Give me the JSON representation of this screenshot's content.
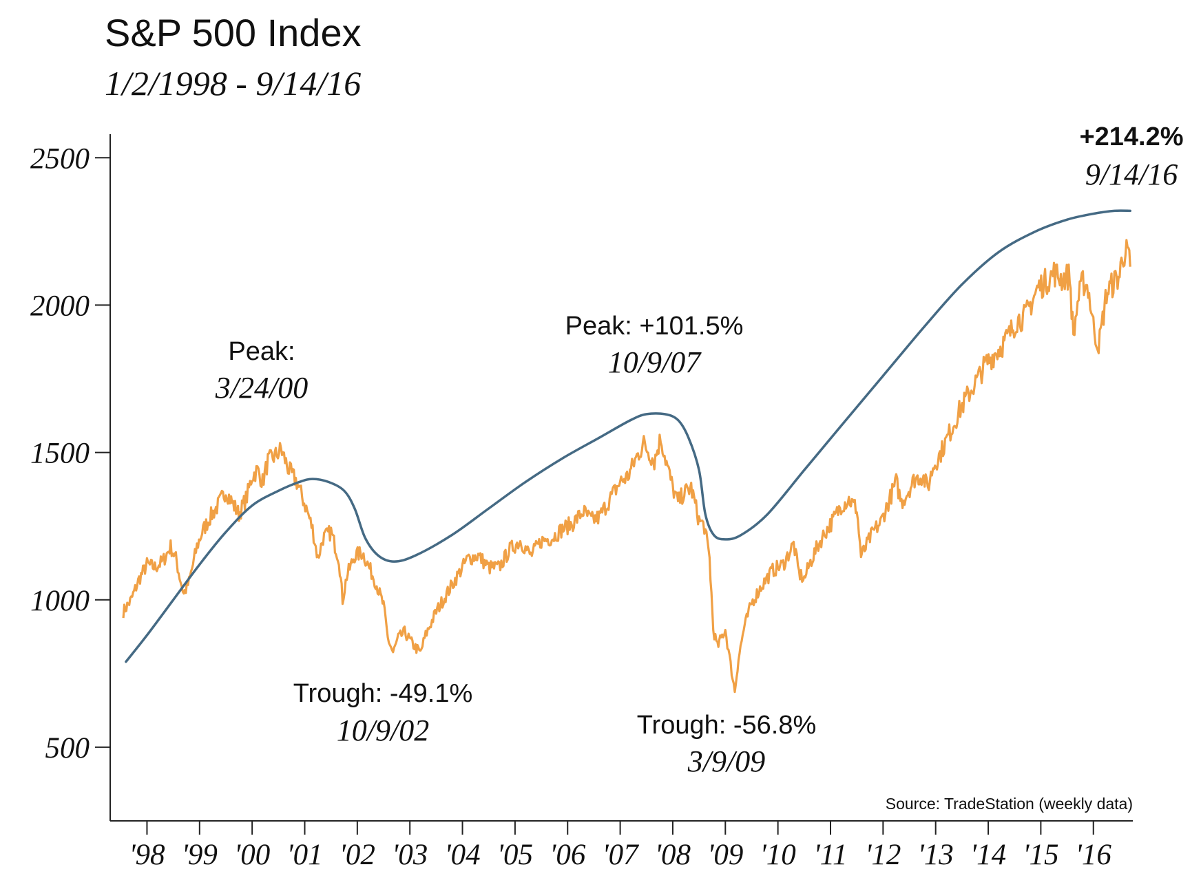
{
  "chart_data": {
    "type": "line",
    "title": "S&P 500 Index",
    "subtitle": "1/2/1998 - 9/14/16",
    "xlabel": "",
    "ylabel": "",
    "ylim": [
      250,
      2580
    ],
    "xlim": [
      1997.3,
      2016.75
    ],
    "y_ticks": [
      {
        "value": 2500,
        "label": "2500"
      },
      {
        "value": 2000,
        "label": "2000"
      },
      {
        "value": 1500,
        "label": "1500"
      },
      {
        "value": 1000,
        "label": "1000"
      },
      {
        "value": 500,
        "label": "500"
      }
    ],
    "x_ticks": [
      {
        "value": 1998,
        "label": "'98"
      },
      {
        "value": 1999,
        "label": "'99"
      },
      {
        "value": 2000,
        "label": "'00"
      },
      {
        "value": 2001,
        "label": "'01"
      },
      {
        "value": 2002,
        "label": "'02"
      },
      {
        "value": 2003,
        "label": "'03"
      },
      {
        "value": 2004,
        "label": "'04"
      },
      {
        "value": 2005,
        "label": "'05"
      },
      {
        "value": 2006,
        "label": "'06"
      },
      {
        "value": 2007,
        "label": "'07"
      },
      {
        "value": 2008,
        "label": "'08"
      },
      {
        "value": 2009,
        "label": "'09"
      },
      {
        "value": 2010,
        "label": "'10"
      },
      {
        "value": 2011,
        "label": "'11"
      },
      {
        "value": 2012,
        "label": "'12"
      },
      {
        "value": 2013,
        "label": "'13"
      },
      {
        "value": 2014,
        "label": "'14"
      },
      {
        "value": 2015,
        "label": "'15"
      },
      {
        "value": 2016,
        "label": "'16"
      }
    ],
    "series": [
      {
        "name": "S&P 500 (weekly)",
        "color": "#F0A045",
        "x": [
          1997.55,
          1997.7,
          1997.85,
          1998.0,
          1998.15,
          1998.3,
          1998.45,
          1998.55,
          1998.62,
          1998.7,
          1998.8,
          1998.95,
          1999.05,
          1999.2,
          1999.35,
          1999.5,
          1999.62,
          1999.75,
          1999.9,
          2000.0,
          2000.1,
          2000.2,
          2000.3,
          2000.45,
          2000.55,
          2000.7,
          2000.85,
          2000.95,
          2001.05,
          2001.15,
          2001.25,
          2001.35,
          2001.5,
          2001.65,
          2001.72,
          2001.8,
          2001.95,
          2002.1,
          2002.25,
          2002.35,
          2002.5,
          2002.58,
          2002.68,
          2002.78,
          2002.9,
          2003.05,
          2003.2,
          2003.3,
          2003.5,
          2003.7,
          2003.9,
          2004.1,
          2004.3,
          2004.5,
          2004.7,
          2004.9,
          2005.1,
          2005.3,
          2005.5,
          2005.7,
          2005.9,
          2006.1,
          2006.3,
          2006.45,
          2006.6,
          2006.8,
          2007.0,
          2007.15,
          2007.3,
          2007.45,
          2007.55,
          2007.65,
          2007.77,
          2007.9,
          2008.0,
          2008.1,
          2008.2,
          2008.35,
          2008.5,
          2008.6,
          2008.7,
          2008.77,
          2008.85,
          2008.92,
          2009.0,
          2009.1,
          2009.18,
          2009.25,
          2009.35,
          2009.5,
          2009.7,
          2009.9,
          2010.1,
          2010.3,
          2010.4,
          2010.5,
          2010.6,
          2010.75,
          2010.9,
          2011.05,
          2011.2,
          2011.35,
          2011.5,
          2011.58,
          2011.65,
          2011.75,
          2011.85,
          2011.95,
          2012.1,
          2012.25,
          2012.35,
          2012.45,
          2012.6,
          2012.75,
          2012.85,
          2012.95,
          2013.1,
          2013.3,
          2013.45,
          2013.6,
          2013.8,
          2013.95,
          2014.1,
          2014.25,
          2014.4,
          2014.55,
          2014.7,
          2014.8,
          2014.95,
          2015.1,
          2015.25,
          2015.4,
          2015.55,
          2015.62,
          2015.7,
          2015.8,
          2015.9,
          2016.0,
          2016.08,
          2016.12,
          2016.25,
          2016.4,
          2016.5,
          2016.55,
          2016.65,
          2016.7
        ],
        "values": [
          960,
          1000,
          1070,
          1120,
          1110,
          1130,
          1180,
          1140,
          1080,
          1020,
          1060,
          1180,
          1230,
          1280,
          1320,
          1370,
          1330,
          1290,
          1350,
          1420,
          1440,
          1400,
          1470,
          1490,
          1510,
          1440,
          1400,
          1350,
          1300,
          1240,
          1140,
          1210,
          1230,
          1140,
          1000,
          1080,
          1150,
          1160,
          1100,
          1060,
          980,
          870,
          820,
          870,
          890,
          850,
          820,
          880,
          960,
          1020,
          1080,
          1140,
          1150,
          1110,
          1110,
          1170,
          1200,
          1150,
          1200,
          1210,
          1240,
          1260,
          1300,
          1270,
          1280,
          1340,
          1400,
          1420,
          1480,
          1530,
          1500,
          1470,
          1550,
          1450,
          1380,
          1330,
          1360,
          1380,
          1270,
          1250,
          1140,
          900,
          840,
          870,
          900,
          780,
          690,
          800,
          900,
          990,
          1050,
          1100,
          1120,
          1190,
          1090,
          1070,
          1120,
          1180,
          1230,
          1270,
          1320,
          1340,
          1310,
          1150,
          1170,
          1210,
          1240,
          1260,
          1330,
          1400,
          1330,
          1360,
          1410,
          1420,
          1380,
          1450,
          1500,
          1580,
          1640,
          1690,
          1750,
          1800,
          1830,
          1860,
          1900,
          1950,
          1960,
          2000,
          2060,
          2080,
          2110,
          2090,
          2100,
          1890,
          2010,
          2080,
          2060,
          1930,
          1870,
          1880,
          2040,
          2080,
          2100,
          2170,
          2180,
          2130
        ]
      },
      {
        "name": "Trend curve",
        "color": "#456A84",
        "x": [
          1997.6,
          1998.0,
          1998.5,
          1999.0,
          1999.5,
          2000.0,
          2000.5,
          2000.9,
          2001.15,
          2001.45,
          2001.75,
          2001.95,
          2002.15,
          2002.4,
          2002.7,
          2003.1,
          2003.8,
          2004.5,
          2005.2,
          2005.9,
          2006.6,
          2007.2,
          2007.5,
          2007.85,
          2008.1,
          2008.3,
          2008.5,
          2008.62,
          2008.78,
          2009.0,
          2009.3,
          2009.8,
          2010.5,
          2011.2,
          2012.0,
          2012.8,
          2013.5,
          2014.2,
          2014.9,
          2015.5,
          2016.0,
          2016.4,
          2016.7
        ],
        "values": [
          790,
          880,
          1000,
          1120,
          1230,
          1320,
          1370,
          1400,
          1410,
          1400,
          1370,
          1310,
          1210,
          1150,
          1130,
          1150,
          1220,
          1310,
          1400,
          1480,
          1550,
          1610,
          1630,
          1630,
          1610,
          1550,
          1440,
          1290,
          1220,
          1205,
          1220,
          1290,
          1440,
          1590,
          1760,
          1930,
          2070,
          2180,
          2250,
          2290,
          2310,
          2320,
          2320
        ]
      }
    ],
    "annotations": [
      {
        "label": "Peak:",
        "date": "3/24/00"
      },
      {
        "label": "Peak: +101.5%",
        "date": "10/9/07"
      },
      {
        "label": "Trough: -49.1%",
        "date": "10/9/02"
      },
      {
        "label": "Trough: -56.8%",
        "date": "3/9/09"
      },
      {
        "label": "+214.2%",
        "date": "9/14/16"
      }
    ],
    "source": "Source: TradeStation (weekly data)",
    "grid": false
  }
}
